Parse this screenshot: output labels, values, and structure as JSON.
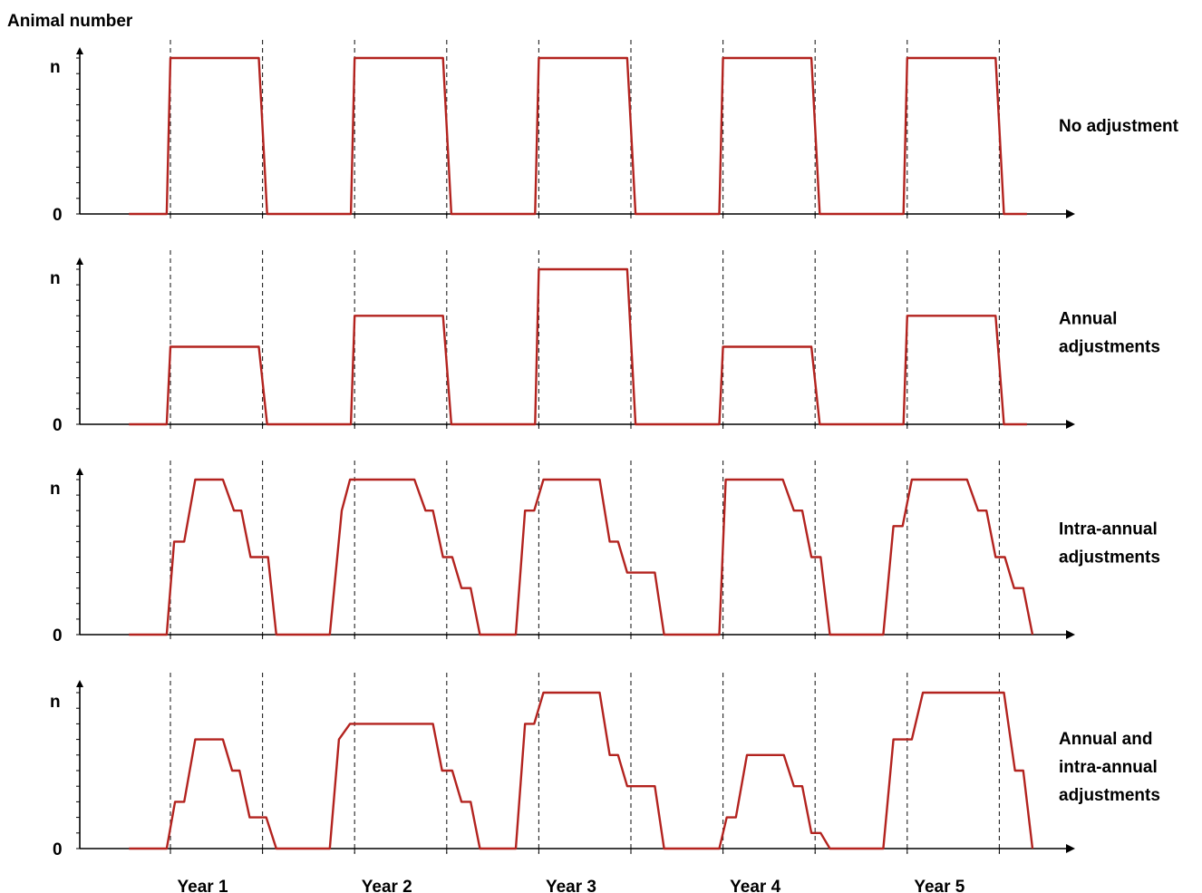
{
  "chart_data": {
    "type": "line",
    "y_axis_title": "Animal number",
    "y_tick_labels": [
      "0",
      "n"
    ],
    "x_categories": [
      "Year 1",
      "Year 2",
      "Year 3",
      "Year 4",
      "Year 5"
    ],
    "panels": [
      {
        "name": "No adjustment",
        "color": "#b3231f",
        "points": [
          [
            -0.45,
            0
          ],
          [
            -0.04,
            0
          ],
          [
            0,
            1
          ],
          [
            0.96,
            1
          ],
          [
            1.05,
            0
          ],
          [
            1.96,
            0
          ],
          [
            2,
            1
          ],
          [
            2.96,
            1
          ],
          [
            3.05,
            0
          ],
          [
            3.96,
            0
          ],
          [
            4,
            1
          ],
          [
            4.96,
            1
          ],
          [
            5.05,
            0
          ],
          [
            5.96,
            0
          ],
          [
            6,
            1
          ],
          [
            6.96,
            1
          ],
          [
            7.05,
            0
          ],
          [
            7.96,
            0
          ],
          [
            8,
            1
          ],
          [
            8.96,
            1
          ],
          [
            9.05,
            0
          ],
          [
            9.3,
            0
          ]
        ]
      },
      {
        "name": "Annual adjustments",
        "color": "#b3231f",
        "points": [
          [
            -0.45,
            0
          ],
          [
            -0.04,
            0
          ],
          [
            0,
            0.5
          ],
          [
            0.96,
            0.5
          ],
          [
            1.05,
            0
          ],
          [
            1.96,
            0
          ],
          [
            2,
            0.7
          ],
          [
            2.96,
            0.7
          ],
          [
            3.05,
            0
          ],
          [
            3.96,
            0
          ],
          [
            4,
            1
          ],
          [
            4.96,
            1
          ],
          [
            5.05,
            0
          ],
          [
            5.96,
            0
          ],
          [
            6,
            0.5
          ],
          [
            6.96,
            0.5
          ],
          [
            7.05,
            0
          ],
          [
            7.96,
            0
          ],
          [
            8,
            0.7
          ],
          [
            8.96,
            0.7
          ],
          [
            9.05,
            0
          ],
          [
            9.3,
            0
          ]
        ]
      },
      {
        "name": "Intra-annual adjustments",
        "color": "#b3231f",
        "points": [
          [
            -0.45,
            0
          ],
          [
            -0.04,
            0
          ],
          [
            0.04,
            0.6
          ],
          [
            0.15,
            0.6
          ],
          [
            0.27,
            1
          ],
          [
            0.57,
            1
          ],
          [
            0.69,
            0.8
          ],
          [
            0.77,
            0.8
          ],
          [
            0.87,
            0.5
          ],
          [
            1.06,
            0.5
          ],
          [
            1.15,
            0
          ],
          [
            1.73,
            0
          ],
          [
            1.86,
            0.8
          ],
          [
            1.95,
            1
          ],
          [
            2.65,
            1
          ],
          [
            2.77,
            0.8
          ],
          [
            2.85,
            0.8
          ],
          [
            2.96,
            0.5
          ],
          [
            3.06,
            0.5
          ],
          [
            3.16,
            0.3
          ],
          [
            3.26,
            0.3
          ],
          [
            3.36,
            0
          ],
          [
            3.75,
            0
          ],
          [
            3.85,
            0.8
          ],
          [
            3.95,
            0.8
          ],
          [
            4.05,
            1
          ],
          [
            4.66,
            1
          ],
          [
            4.77,
            0.6
          ],
          [
            4.86,
            0.6
          ],
          [
            4.96,
            0.4
          ],
          [
            5.26,
            0.4
          ],
          [
            5.36,
            0
          ],
          [
            5.96,
            0
          ],
          [
            6.03,
            1
          ],
          [
            6.65,
            1
          ],
          [
            6.77,
            0.8
          ],
          [
            6.86,
            0.8
          ],
          [
            6.96,
            0.5
          ],
          [
            7.06,
            0.5
          ],
          [
            7.16,
            0
          ],
          [
            7.74,
            0
          ],
          [
            7.85,
            0.7
          ],
          [
            7.95,
            0.7
          ],
          [
            8.05,
            1
          ],
          [
            8.65,
            1
          ],
          [
            8.77,
            0.8
          ],
          [
            8.86,
            0.8
          ],
          [
            8.96,
            0.5
          ],
          [
            9.06,
            0.5
          ],
          [
            9.16,
            0.3
          ],
          [
            9.26,
            0.3
          ],
          [
            9.36,
            0
          ]
        ]
      },
      {
        "name": "Annual and intra-annual adjustments",
        "color": "#b3231f",
        "points": [
          [
            -0.45,
            0
          ],
          [
            -0.04,
            0
          ],
          [
            0.05,
            0.3
          ],
          [
            0.15,
            0.3
          ],
          [
            0.27,
            0.7
          ],
          [
            0.57,
            0.7
          ],
          [
            0.67,
            0.5
          ],
          [
            0.75,
            0.5
          ],
          [
            0.86,
            0.2
          ],
          [
            1.04,
            0.2
          ],
          [
            1.15,
            0
          ],
          [
            1.73,
            0
          ],
          [
            1.83,
            0.7
          ],
          [
            1.95,
            0.8
          ],
          [
            2.85,
            0.8
          ],
          [
            2.95,
            0.5
          ],
          [
            3.06,
            0.5
          ],
          [
            3.16,
            0.3
          ],
          [
            3.26,
            0.3
          ],
          [
            3.36,
            0
          ],
          [
            3.75,
            0
          ],
          [
            3.85,
            0.8
          ],
          [
            3.95,
            0.8
          ],
          [
            4.05,
            1
          ],
          [
            4.66,
            1
          ],
          [
            4.77,
            0.6
          ],
          [
            4.86,
            0.6
          ],
          [
            4.96,
            0.4
          ],
          [
            5.26,
            0.4
          ],
          [
            5.36,
            0
          ],
          [
            5.96,
            0
          ],
          [
            6.04,
            0.2
          ],
          [
            6.14,
            0.2
          ],
          [
            6.26,
            0.6
          ],
          [
            6.66,
            0.6
          ],
          [
            6.77,
            0.4
          ],
          [
            6.86,
            0.4
          ],
          [
            6.96,
            0.1
          ],
          [
            7.06,
            0.1
          ],
          [
            7.16,
            0
          ],
          [
            7.74,
            0
          ],
          [
            7.85,
            0.7
          ],
          [
            8.05,
            0.7
          ],
          [
            8.17,
            1
          ],
          [
            9.05,
            1
          ],
          [
            9.17,
            0.5
          ],
          [
            9.26,
            0.5
          ],
          [
            9.36,
            0
          ]
        ]
      }
    ]
  }
}
